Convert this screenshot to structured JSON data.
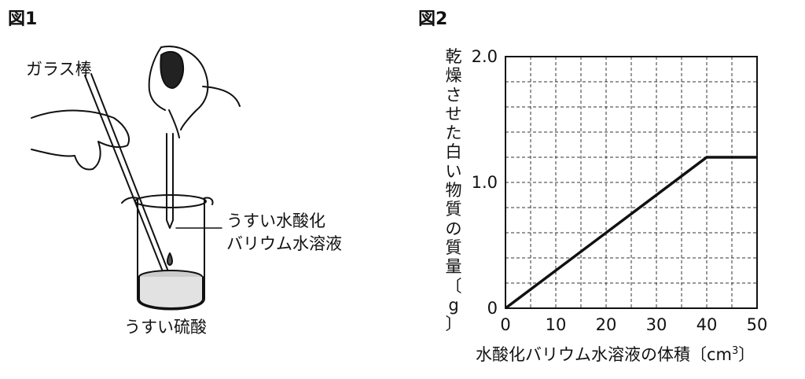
{
  "figure1": {
    "title": "図1",
    "labels": {
      "glass_rod": "ガラス棒",
      "solution_line1": "うすい水酸化",
      "solution_line2": "バリウム水溶液",
      "acid": "うすい硫酸"
    }
  },
  "figure2": {
    "title": "図2"
  },
  "chart_data": {
    "type": "line",
    "xlabel": "水酸化バリウム水溶液の体積〔cm",
    "xlabel_sup": "3",
    "xlabel_close": "〕",
    "ylabel_chars": [
      "乾",
      "燥",
      "さ",
      "せ",
      "た",
      "白",
      "い",
      "物",
      "質",
      "の",
      "質",
      "量",
      "〔",
      "g",
      "〕"
    ],
    "xlim": [
      0,
      50
    ],
    "ylim": [
      0,
      2.0
    ],
    "x_ticks": [
      "0",
      "10",
      "20",
      "30",
      "40",
      "50"
    ],
    "y_ticks": [
      "0",
      "1.0",
      "2.0"
    ],
    "grid": true,
    "series": [
      {
        "x": [
          0,
          40,
          50
        ],
        "y": [
          0,
          1.2,
          1.2
        ]
      }
    ]
  }
}
